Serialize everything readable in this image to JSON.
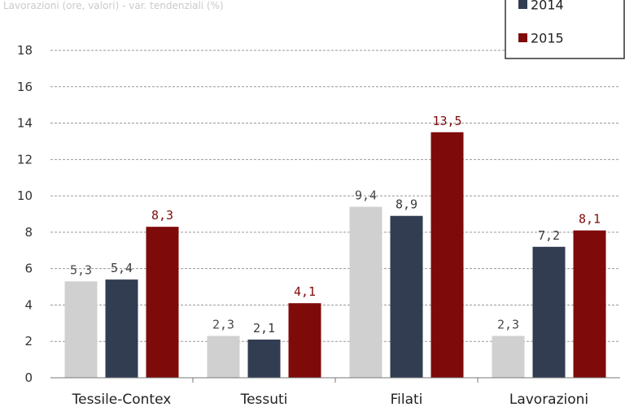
{
  "header": {
    "subtitle": "Lavorazioni (ore, valori) - var. tendenziali (%)"
  },
  "chart_data": {
    "type": "bar",
    "categories": [
      "Tessile-Contex",
      "Tessuti",
      "Filati",
      "Lavorazioni"
    ],
    "series": [
      {
        "name": "",
        "color": "#d0d0d0",
        "label_color": "#4a4a4a",
        "values": [
          5.3,
          2.3,
          9.4,
          2.3
        ],
        "labels": [
          "5,3",
          "2,3",
          "9,4",
          "2,3"
        ]
      },
      {
        "name": "2014",
        "color": "#323d52",
        "label_color": "#3a3a3a",
        "values": [
          5.4,
          2.1,
          8.9,
          7.2
        ],
        "labels": [
          "5,4",
          "2,1",
          "8,9",
          "7,2"
        ]
      },
      {
        "name": "2015",
        "color": "#7f0a0a",
        "label_color": "#7f0a0a",
        "values": [
          8.3,
          4.1,
          13.5,
          8.1
        ],
        "labels": [
          "8,3",
          "4,1",
          "13,5",
          "8,1"
        ]
      }
    ],
    "ylim": [
      0,
      18
    ],
    "yticks": [
      "0",
      "2",
      "4",
      "6",
      "8",
      "10",
      "12",
      "14",
      "16",
      "18"
    ],
    "grid": true,
    "legend_position": "top-right",
    "xlabel": "",
    "ylabel": ""
  }
}
